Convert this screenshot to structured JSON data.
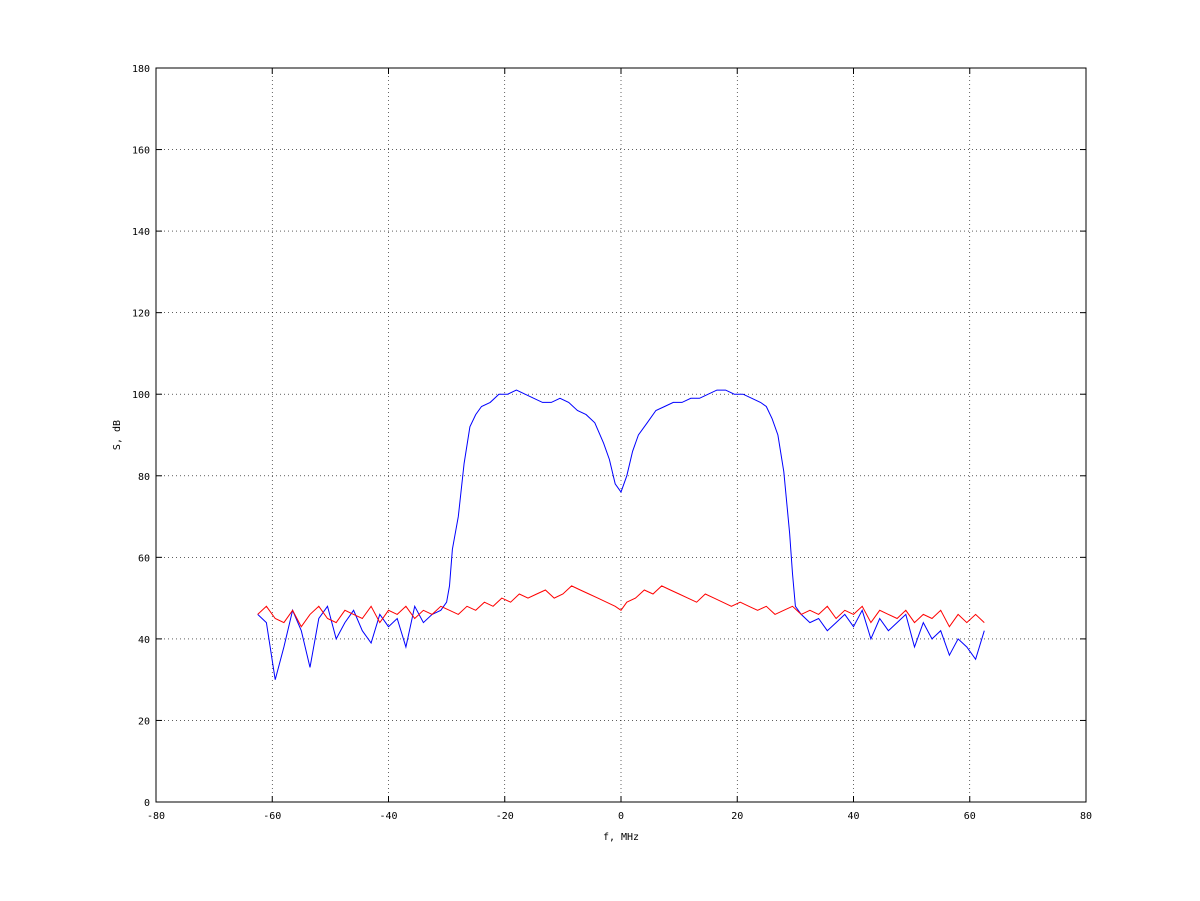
{
  "chart_data": {
    "type": "line",
    "title": "",
    "xlabel": "f, MHz",
    "ylabel": "S, dB",
    "xlim": [
      -80,
      80
    ],
    "ylim": [
      0,
      180
    ],
    "xticks": [
      -80,
      -60,
      -40,
      -20,
      0,
      20,
      40,
      60,
      80
    ],
    "yticks": [
      0,
      20,
      40,
      60,
      80,
      100,
      120,
      140,
      160,
      180
    ],
    "xtick_labels": [
      "-80",
      "-60",
      "-40",
      "-20",
      "0",
      "20",
      "40",
      "60",
      "80"
    ],
    "ytick_labels": [
      "0",
      "20",
      "40",
      "60",
      "80",
      "100",
      "120",
      "140",
      "160",
      "180"
    ],
    "grid": true,
    "legend": null,
    "series": [
      {
        "color": "#0000ff",
        "x": [
          -62.5,
          -61,
          -59.5,
          -58,
          -56.5,
          -55,
          -53.5,
          -52,
          -50.5,
          -49,
          -47.5,
          -46,
          -44.5,
          -43,
          -41.5,
          -40,
          -38.5,
          -37,
          -35.5,
          -34,
          -32.5,
          -31,
          -30,
          -29.5,
          -29,
          -28,
          -27,
          -26,
          -25,
          -24,
          -22.5,
          -21,
          -19.5,
          -18,
          -16.5,
          -15,
          -13.5,
          -12,
          -10.5,
          -9,
          -7.5,
          -6,
          -4.5,
          -3,
          -2,
          -1,
          0,
          1,
          2,
          3,
          4.5,
          6,
          7.5,
          9,
          10.5,
          12,
          13.5,
          15,
          16.5,
          18,
          19.5,
          21,
          22.5,
          24,
          25,
          26,
          27,
          28,
          29,
          29.5,
          30,
          31,
          32.5,
          34,
          35.5,
          37,
          38.5,
          40,
          41.5,
          43,
          44.5,
          46,
          47.5,
          49,
          50.5,
          52,
          53.5,
          55,
          56.5,
          58,
          59.5,
          61,
          62.5
        ],
        "y": [
          46,
          44,
          30,
          38,
          47,
          42,
          33,
          45,
          48,
          40,
          44,
          47,
          42,
          39,
          46,
          43,
          45,
          38,
          48,
          44,
          46,
          47,
          49,
          53,
          62,
          70,
          83,
          92,
          95,
          97,
          98,
          100,
          100,
          101,
          100,
          99,
          98,
          98,
          99,
          98,
          96,
          95,
          93,
          88,
          84,
          78,
          76,
          80,
          86,
          90,
          93,
          96,
          97,
          98,
          98,
          99,
          99,
          100,
          101,
          101,
          100,
          100,
          99,
          98,
          97,
          94,
          90,
          81,
          66,
          56,
          48,
          46,
          44,
          45,
          42,
          44,
          46,
          43,
          47,
          40,
          45,
          42,
          44,
          46,
          38,
          44,
          40,
          42,
          36,
          40,
          38,
          35,
          42
        ]
      },
      {
        "color": "#ff0000",
        "x": [
          -62.5,
          -61,
          -59.5,
          -58,
          -56.5,
          -55,
          -53.5,
          -52,
          -50.5,
          -49,
          -47.5,
          -46,
          -44.5,
          -43,
          -41.5,
          -40,
          -38.5,
          -37,
          -35.5,
          -34,
          -32.5,
          -31,
          -29.5,
          -28,
          -26.5,
          -25,
          -23.5,
          -22,
          -20.5,
          -19,
          -17.5,
          -16,
          -14.5,
          -13,
          -11.5,
          -10,
          -8.5,
          -7,
          -5.5,
          -4,
          -2.5,
          -1,
          0,
          1,
          2.5,
          4,
          5.5,
          7,
          8.5,
          10,
          11.5,
          13,
          14.5,
          16,
          17.5,
          19,
          20.5,
          22,
          23.5,
          25,
          26.5,
          28,
          29.5,
          31,
          32.5,
          34,
          35.5,
          37,
          38.5,
          40,
          41.5,
          43,
          44.5,
          46,
          47.5,
          49,
          50.5,
          52,
          53.5,
          55,
          56.5,
          58,
          59.5,
          61,
          62.5
        ],
        "y": [
          46,
          48,
          45,
          44,
          47,
          43,
          46,
          48,
          45,
          44,
          47,
          46,
          45,
          48,
          44,
          47,
          46,
          48,
          45,
          47,
          46,
          48,
          47,
          46,
          48,
          47,
          49,
          48,
          50,
          49,
          51,
          50,
          51,
          52,
          50,
          51,
          53,
          52,
          51,
          50,
          49,
          48,
          47,
          49,
          50,
          52,
          51,
          53,
          52,
          51,
          50,
          49,
          51,
          50,
          49,
          48,
          49,
          48,
          47,
          48,
          46,
          47,
          48,
          46,
          47,
          46,
          48,
          45,
          47,
          46,
          48,
          44,
          47,
          46,
          45,
          47,
          44,
          46,
          45,
          47,
          43,
          46,
          44,
          46,
          44
        ]
      }
    ]
  }
}
